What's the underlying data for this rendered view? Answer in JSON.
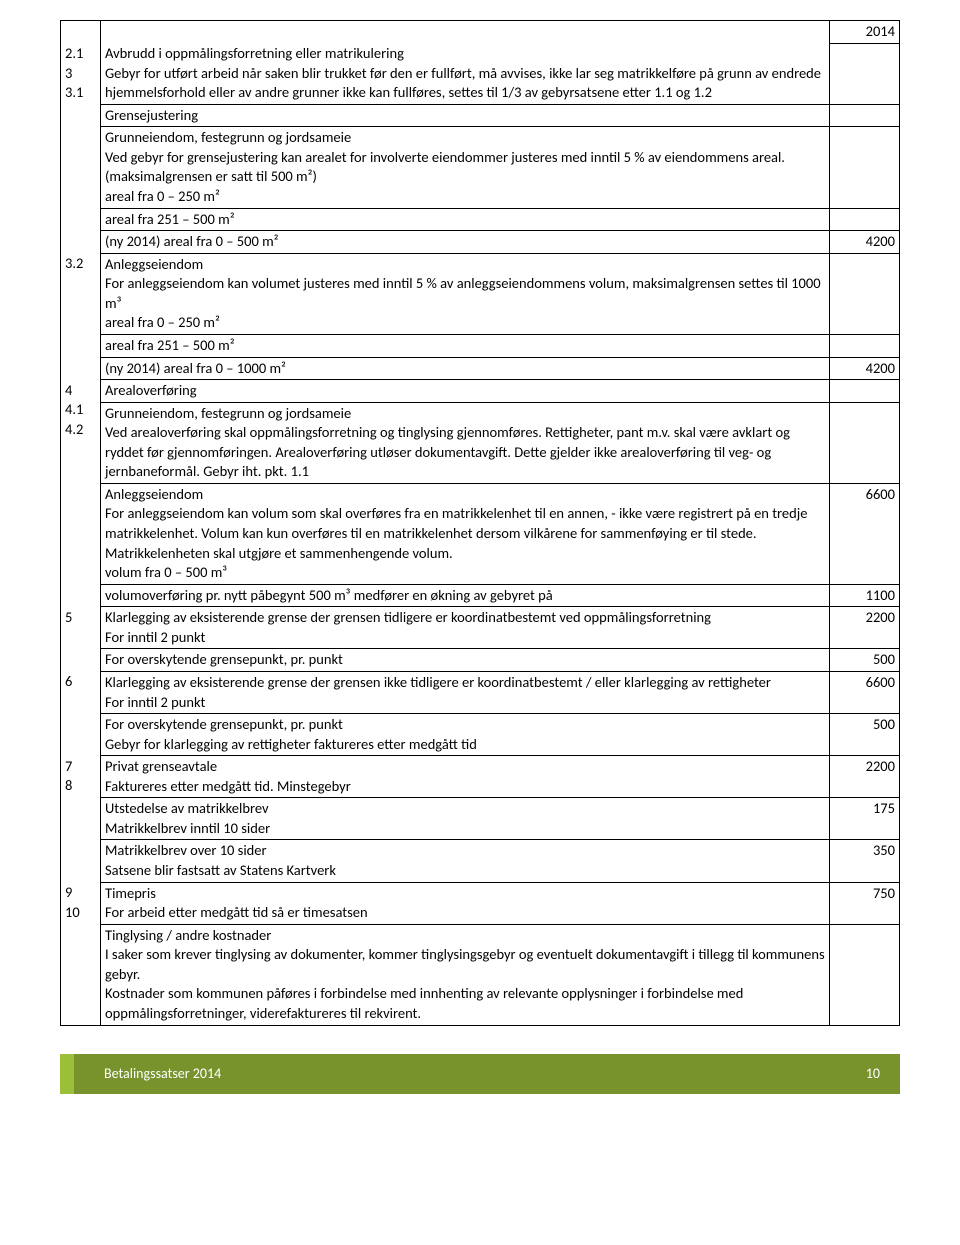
{
  "header_year": "2014",
  "rows": [
    {
      "num": "2.1",
      "text": "Avbrudd i oppmålingsforretning eller matrikulering\nGebyr for utført arbeid når saken blir trukket før den er fullført, må avvises, ikke lar seg matrikkelføre på grunn av endrede hjemmelsforhold eller av andre grunner ikke kan fullføres, settes til 1/3 av gebyrsatsene etter 1.1 og 1.2",
      "val": ""
    },
    {
      "num": "3",
      "text": "Grensejustering",
      "val": ""
    },
    {
      "num": "3.1",
      "text": "Grunneiendom, festegrunn og jordsameie\nVed gebyr for grensejustering kan arealet for involverte eiendommer justeres med inntil 5 % av eiendommens areal. (maksimalgrensen er satt til 500 m²)\nareal fra 0 – 250 m²",
      "val": ""
    },
    {
      "num": "",
      "text": "areal fra 251 – 500 m²",
      "val": ""
    },
    {
      "num": "",
      "text": "(ny 2014) areal fra 0 – 500 m²",
      "val": "4200"
    },
    {
      "num": "3.2",
      "text": "Anleggseiendom\nFor anleggseiendom kan volumet justeres med inntil 5 % av anleggseiendommens volum, maksimalgrensen settes til 1000 m³\nareal fra 0 – 250 m²",
      "val": ""
    },
    {
      "num": "",
      "text": "areal fra 251 – 500 m²",
      "val": ""
    },
    {
      "num": "",
      "text": "(ny 2014) areal fra 0 – 1000 m²",
      "val": "4200"
    },
    {
      "num": "4",
      "text": "Arealoverføring",
      "val": ""
    },
    {
      "num": "4.1",
      "text": "Grunneiendom, festegrunn og jordsameie\nVed arealoverføring skal oppmålingsforretning og tinglysing gjennomføres. Rettigheter, pant m.v. skal være avklart og ryddet før gjennomføringen. Arealoverføring utløser dokumentavgift. Dette gjelder ikke arealoverføring til veg- og jernbaneformål. Gebyr iht. pkt. 1.1",
      "val": ""
    },
    {
      "num": "4.2",
      "text": "Anleggseiendom\nFor anleggseiendom kan volum som skal overføres fra en matrikkelenhet til en annen, - ikke være registrert på en tredje matrikkelenhet. Volum kan kun overføres til en matrikkelenhet dersom vilkårene for sammenføying er til stede. Matrikkelenheten skal utgjøre et sammenhengende volum.\nvolum fra 0 – 500 m³",
      "val": "6600"
    },
    {
      "num": "",
      "text": "volumoverføring pr. nytt påbegynt 500 m³ medfører en økning av gebyret på",
      "val": "1100"
    },
    {
      "num": "5",
      "text": "Klarlegging av eksisterende grense der grensen tidligere er koordinatbestemt ved oppmålingsforretning\nFor inntil 2 punkt",
      "val": "2200"
    },
    {
      "num": "",
      "text": "For overskytende grensepunkt, pr. punkt",
      "val": "500"
    },
    {
      "num": "6",
      "text": "Klarlegging av eksisterende grense der grensen ikke tidligere er koordinatbestemt / eller klarlegging av rettigheter\nFor inntil 2 punkt",
      "val": "6600"
    },
    {
      "num": "",
      "text": "For overskytende grensepunkt, pr. punkt\nGebyr for klarlegging av rettigheter faktureres etter medgått tid",
      "val": "500"
    },
    {
      "num": "7",
      "text": "Privat grenseavtale\nFaktureres etter medgått tid. Minstegebyr",
      "val": "2200"
    },
    {
      "num": "8",
      "text": "Utstedelse av matrikkelbrev\nMatrikkelbrev inntil 10 sider",
      "val": "175"
    },
    {
      "num": "",
      "text": "Matrikkelbrev over 10 sider\nSatsene blir fastsatt av Statens Kartverk",
      "val": "350"
    },
    {
      "num": "9",
      "text": "Timepris\nFor arbeid etter medgått tid så er timesatsen",
      "val": "750"
    },
    {
      "num": "10",
      "text": "Tinglysing / andre kostnader\nI saker som krever tinglysing av dokumenter, kommer tinglysingsgebyr og eventuelt dokumentavgift i tillegg til kommunens gebyr.\nKostnader som kommunen påføres i forbindelse med innhenting av relevante opplysninger i forbindelse med oppmålingsforretninger, viderefaktureres til rekvirent.",
      "val": ""
    }
  ],
  "groups": [
    {
      "count": 4,
      "numMerged": false
    },
    {
      "count": 1,
      "numMerged": true
    },
    {
      "count": 2,
      "numMerged": false
    },
    {
      "count": 1,
      "numMerged": true
    },
    {
      "count": 3,
      "numMerged": false
    },
    {
      "count": 1,
      "numMerged": true
    },
    {
      "count": 1,
      "numMerged": false
    },
    {
      "count": 1,
      "numMerged": true
    },
    {
      "count": 1,
      "numMerged": false
    },
    {
      "count": 1,
      "numMerged": true
    },
    {
      "count": 2,
      "numMerged": false
    },
    {
      "count": 1,
      "numMerged": true
    },
    {
      "count": 2,
      "numMerged": false
    }
  ],
  "footer": {
    "title": "Betalingssatser 2014",
    "page": "10"
  },
  "colors": {
    "footer_bg": "#78932c",
    "footer_accent": "#9cbf3a",
    "footer_text": "#ffffff",
    "border": "#000000",
    "text": "#000000"
  }
}
